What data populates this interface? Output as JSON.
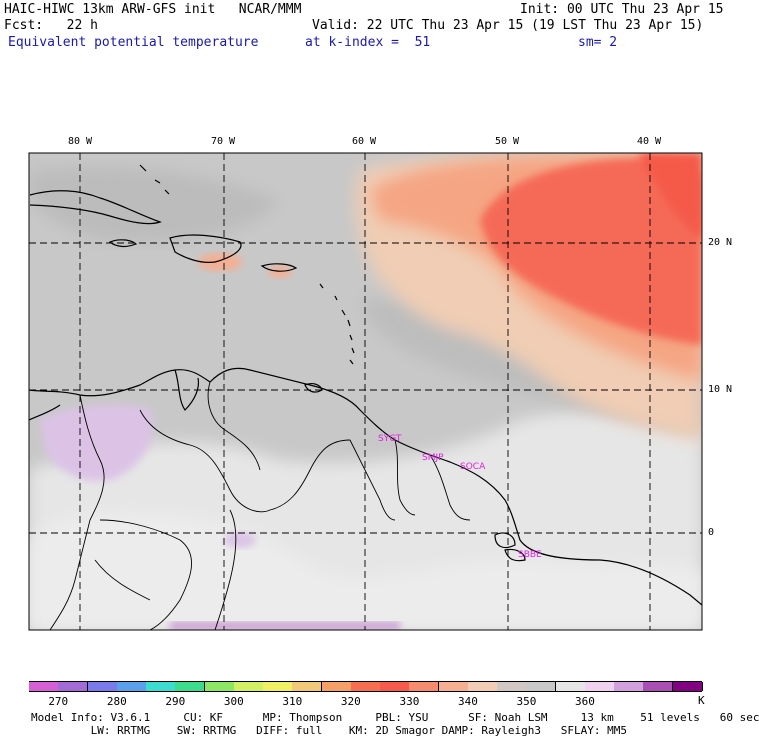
{
  "header": {
    "model_title": "HAIC-HIWC 13km ARW-GFS init   NCAR/MMM",
    "init": "Init: 00 UTC Thu 23 Apr 15",
    "fcst": "Fcst:   22 h",
    "valid": "Valid: 22 UTC Thu 23 Apr 15 (19 LST Thu 23 Apr 15)",
    "field": "Equivalent potential temperature",
    "level": "at k-index =  51",
    "smooth": "sm= 2"
  },
  "map": {
    "lon_labels": [
      "80 W",
      "70 W",
      "60 W",
      "50 W",
      "40 W"
    ],
    "lat_labels": [
      "20 N",
      "10 N",
      "0"
    ],
    "stations": [
      "SYGT",
      "SMJP",
      "SOCA",
      "SBBE"
    ],
    "colors": {
      "land_line": "#000000",
      "grid": "#000000",
      "station": "#e020e0"
    }
  },
  "colorbar": {
    "ticks": [
      "270",
      "280",
      "290",
      "300",
      "310",
      "320",
      "330",
      "340",
      "350",
      "360"
    ],
    "unit": "K",
    "colors": [
      "#d65fd6",
      "#a36bd6",
      "#7a7aea",
      "#5aa0ea",
      "#3cdcd0",
      "#3cdc8c",
      "#8ce864",
      "#d2f064",
      "#f0f064",
      "#f0c878",
      "#f5a064",
      "#f56e50",
      "#f55a4a",
      "#f58c6e",
      "#f5af91",
      "#f0cdb4",
      "#d2c8c3",
      "#c8c8c8",
      "#e6e6e6",
      "#f0d2f0",
      "#d2a0dc",
      "#aa50b4",
      "#820082"
    ]
  },
  "footer": {
    "line1": "Model Info: V3.6.1     CU: KF      MP: Thompson     PBL: YSU      SF: Noah LSM     13 km    51 levels   60 sec",
    "line2": "         LW: RRTMG    SW: RRTMG   DIFF: full    KM: 2D Smagor DAMP: Rayleigh3   SFLAY: MM5"
  }
}
